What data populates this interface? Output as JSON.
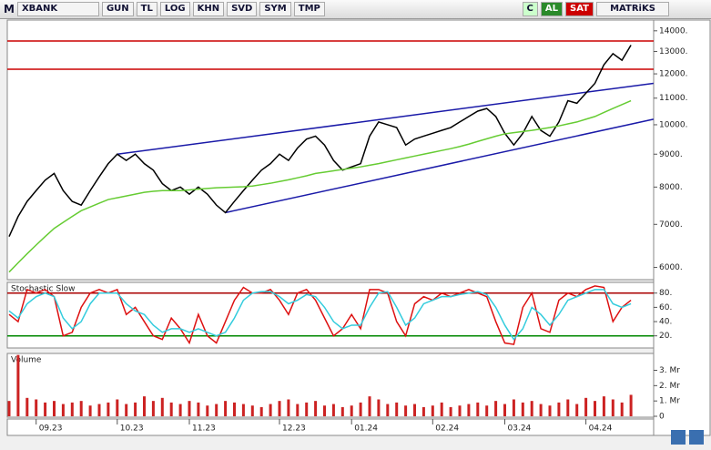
{
  "toolbar": {
    "logo": "M",
    "symbol": "XBANK",
    "buttons": [
      "GUN",
      "TL",
      "LOG",
      "KHN",
      "SVD",
      "SYM",
      "TMP"
    ],
    "c": "C",
    "buy": "AL",
    "sell": "SAT",
    "brand": "MATRiKS"
  },
  "chart_data": [
    {
      "type": "line",
      "log": true,
      "ylim": [
        5780,
        14550
      ],
      "yticks": [
        {
          "value": 14000,
          "label": "14000."
        },
        {
          "value": 13000,
          "label": "13000."
        },
        {
          "value": 12000,
          "label": "12000."
        },
        {
          "value": 11000,
          "label": "11000."
        },
        {
          "value": 10000,
          "label": "10000."
        },
        {
          "value": 9000,
          "label": "9000."
        },
        {
          "value": 8000,
          "label": "8000."
        },
        {
          "value": 7000,
          "label": "7000."
        },
        {
          "value": 6000,
          "label": "6000."
        }
      ],
      "series": [
        {
          "color": "#000000",
          "values": [
            6700,
            7200,
            7600,
            7900,
            8200,
            8400,
            7900,
            7600,
            7500,
            7900,
            8300,
            8700,
            9000,
            8800,
            9000,
            8700,
            8500,
            8100,
            7900,
            8000,
            7800,
            8000,
            7800,
            7500,
            7300,
            7600,
            7900,
            8200,
            8500,
            8700,
            9000,
            8800,
            9200,
            9500,
            9600,
            9300,
            8800,
            8500,
            8600,
            8700,
            9600,
            10100,
            10000,
            9900,
            9300,
            9500,
            9600,
            9700,
            9800,
            9900,
            10100,
            10300,
            10500,
            10600,
            10300,
            9700,
            9300,
            9700,
            10300,
            9800,
            9600,
            10100,
            10900,
            10800,
            11200,
            11600,
            12400,
            12900,
            12600,
            13300
          ]
        },
        {
          "color": "#66cc33",
          "values": [
            5900,
            6100,
            6300,
            6500,
            6700,
            6900,
            7050,
            7200,
            7350,
            7450,
            7550,
            7650,
            7700,
            7750,
            7800,
            7850,
            7880,
            7900,
            7900,
            7900,
            7920,
            7940,
            7960,
            7980,
            7990,
            8000,
            8010,
            8030,
            8070,
            8110,
            8160,
            8210,
            8270,
            8330,
            8400,
            8440,
            8480,
            8520,
            8560,
            8600,
            8650,
            8700,
            8760,
            8820,
            8880,
            8940,
            9000,
            9060,
            9120,
            9180,
            9250,
            9330,
            9420,
            9510,
            9600,
            9680,
            9720,
            9760,
            9800,
            9850,
            9900,
            9960,
            10030,
            10100,
            10200,
            10300,
            10450,
            10600,
            10750,
            10900
          ]
        }
      ],
      "hlines": [
        {
          "value": 13500,
          "color": "#cc0000"
        },
        {
          "value": 12200,
          "color": "#cc0000"
        }
      ],
      "trendlines": [
        {
          "start": [
            12,
            9000
          ],
          "end": [
            71.5,
            11600
          ],
          "color": "#1a1aa8"
        },
        {
          "start": [
            24,
            7300
          ],
          "end": [
            71.5,
            10200
          ],
          "color": "#1a1aa8"
        }
      ]
    },
    {
      "type": "line",
      "title": "Stochastic Slow",
      "ylim": [
        3,
        95
      ],
      "yticks": [
        {
          "value": 80,
          "label": "80."
        },
        {
          "value": 60,
          "label": "60."
        },
        {
          "value": 40,
          "label": "40."
        },
        {
          "value": 20,
          "label": "20."
        }
      ],
      "series": [
        {
          "color": "#dd1111",
          "values": [
            50,
            40,
            85,
            80,
            85,
            75,
            20,
            25,
            60,
            80,
            85,
            80,
            85,
            50,
            60,
            40,
            20,
            15,
            45,
            30,
            10,
            50,
            20,
            10,
            40,
            70,
            88,
            80,
            80,
            85,
            70,
            50,
            80,
            85,
            70,
            45,
            20,
            30,
            50,
            30,
            85,
            85,
            80,
            40,
            20,
            65,
            75,
            70,
            80,
            75,
            80,
            85,
            80,
            75,
            40,
            10,
            8,
            60,
            80,
            30,
            25,
            70,
            80,
            75,
            85,
            90,
            88,
            40,
            60,
            70
          ]
        },
        {
          "color": "#33ccdd",
          "values": [
            55,
            45,
            65,
            75,
            80,
            75,
            45,
            30,
            40,
            65,
            80,
            80,
            80,
            65,
            55,
            50,
            35,
            25,
            30,
            30,
            25,
            30,
            25,
            20,
            25,
            45,
            70,
            80,
            82,
            82,
            75,
            65,
            70,
            78,
            75,
            60,
            40,
            30,
            35,
            35,
            60,
            80,
            82,
            60,
            35,
            45,
            65,
            70,
            75,
            75,
            78,
            80,
            82,
            78,
            60,
            35,
            15,
            30,
            60,
            50,
            35,
            50,
            70,
            75,
            80,
            85,
            85,
            65,
            60,
            65
          ]
        }
      ],
      "hlines": [
        {
          "value": 80,
          "color": "#aa0000"
        },
        {
          "value": 20,
          "color": "#008800"
        }
      ]
    },
    {
      "type": "bar",
      "title": "Volume",
      "ylim": [
        0,
        4.1
      ],
      "color": "#cc2222",
      "yticks": [
        {
          "value": 3,
          "label": "3. Mr"
        },
        {
          "value": 2,
          "label": "2. Mr"
        },
        {
          "value": 1,
          "label": "1. Mr"
        },
        0
      ],
      "values": [
        1.0,
        4.0,
        1.2,
        1.1,
        0.9,
        1.0,
        0.8,
        0.9,
        1.0,
        0.7,
        0.8,
        0.9,
        1.1,
        0.8,
        0.9,
        1.3,
        1.0,
        1.2,
        0.9,
        0.8,
        1.0,
        0.9,
        0.7,
        0.8,
        1.0,
        0.9,
        0.8,
        0.7,
        0.6,
        0.8,
        1.0,
        1.1,
        0.8,
        0.9,
        1.0,
        0.7,
        0.8,
        0.6,
        0.7,
        0.9,
        1.3,
        1.1,
        0.8,
        0.9,
        0.7,
        0.8,
        0.6,
        0.7,
        0.9,
        0.6,
        0.7,
        0.8,
        0.9,
        0.7,
        1.0,
        0.8,
        1.1,
        0.9,
        1.0,
        0.8,
        0.7,
        0.9,
        1.1,
        0.8,
        1.2,
        1.0,
        1.3,
        1.1,
        0.9,
        1.4
      ],
      "categories": [
        null,
        null,
        null,
        "09.23",
        null,
        null,
        null,
        null,
        null,
        null,
        null,
        null,
        "10.23",
        null,
        null,
        null,
        null,
        null,
        null,
        null,
        "11.23",
        null,
        null,
        null,
        null,
        null,
        null,
        null,
        null,
        null,
        "12.23",
        null,
        null,
        null,
        null,
        null,
        null,
        null,
        "01.24",
        null,
        null,
        null,
        null,
        null,
        null,
        null,
        null,
        "02.24",
        null,
        null,
        null,
        null,
        null,
        null,
        null,
        "03.24",
        null,
        null,
        null,
        null,
        null,
        null,
        null,
        null,
        "04.24",
        null,
        null,
        null,
        null,
        null
      ]
    }
  ]
}
